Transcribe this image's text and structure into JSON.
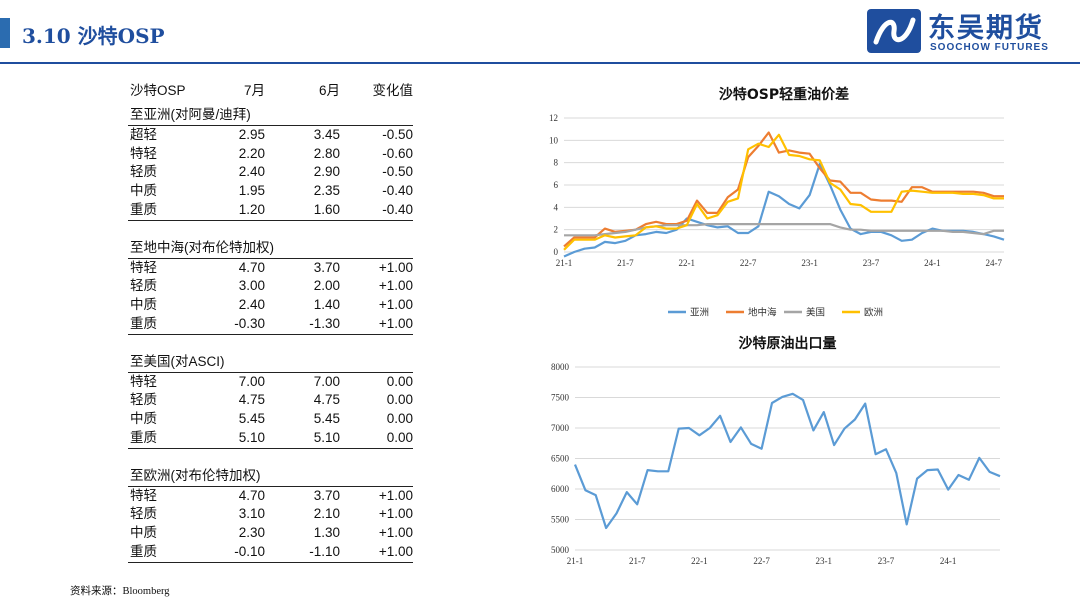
{
  "header": {
    "title": "3.10 沙特OSP"
  },
  "logo": {
    "cn": "东吴期货",
    "en": "SOOCHOW FUTURES"
  },
  "table": {
    "columns": [
      "沙特OSP",
      "7月",
      "6月",
      "变化值"
    ],
    "sections": [
      {
        "title": "至亚洲(对阿曼/迪拜)",
        "rows": [
          [
            "超轻",
            "2.95",
            "3.45",
            "-0.50"
          ],
          [
            "特轻",
            "2.20",
            "2.80",
            "-0.60"
          ],
          [
            "轻质",
            "2.40",
            "2.90",
            "-0.50"
          ],
          [
            "中质",
            "1.95",
            "2.35",
            "-0.40"
          ],
          [
            "重质",
            "1.20",
            "1.60",
            "-0.40"
          ]
        ]
      },
      {
        "title": "至地中海(对布伦特加权)",
        "rows": [
          [
            "特轻",
            "4.70",
            "3.70",
            "+1.00"
          ],
          [
            "轻质",
            "3.00",
            "2.00",
            "+1.00"
          ],
          [
            "中质",
            "2.40",
            "1.40",
            "+1.00"
          ],
          [
            "重质",
            "-0.30",
            "-1.30",
            "+1.00"
          ]
        ]
      },
      {
        "title": "至美国(对ASCI)",
        "rows": [
          [
            "特轻",
            "7.00",
            "7.00",
            "0.00"
          ],
          [
            "轻质",
            "4.75",
            "4.75",
            "0.00"
          ],
          [
            "中质",
            "5.45",
            "5.45",
            "0.00"
          ],
          [
            "重质",
            "5.10",
            "5.10",
            "0.00"
          ]
        ]
      },
      {
        "title": "至欧洲(对布伦特加权)",
        "rows": [
          [
            "特轻",
            "4.70",
            "3.70",
            "+1.00"
          ],
          [
            "轻质",
            "3.10",
            "2.10",
            "+1.00"
          ],
          [
            "中质",
            "2.30",
            "1.30",
            "+1.00"
          ],
          [
            "重质",
            "-0.10",
            "-1.10",
            "+1.00"
          ]
        ]
      }
    ]
  },
  "source": "资料来源：Bloomberg",
  "chart_data": [
    {
      "type": "line",
      "title": "沙特OSP轻重油价差",
      "xlabel": "",
      "ylabel": "",
      "ylim": [
        0,
        12
      ],
      "yticks": [
        0,
        2,
        4,
        6,
        8,
        10,
        12
      ],
      "xticks": [
        "21-1",
        "21-7",
        "22-1",
        "22-7",
        "23-1",
        "23-7",
        "24-1",
        "24-7"
      ],
      "x_start": "21-1",
      "grid": true,
      "legend": "bottom",
      "series": [
        {
          "name": "亚洲",
          "color": "#5B9BD5",
          "values": [
            -0.4,
            0.0,
            0.3,
            0.4,
            0.9,
            0.8,
            1.0,
            1.5,
            1.6,
            1.8,
            1.7,
            2.0,
            3.0,
            2.7,
            2.4,
            2.2,
            2.3,
            1.7,
            1.7,
            2.3,
            5.4,
            5.0,
            4.3,
            3.9,
            5.1,
            7.9,
            6.0,
            3.8,
            2.1,
            1.6,
            1.8,
            1.8,
            1.5,
            1.0,
            1.1,
            1.7,
            2.1,
            1.9,
            1.9,
            1.9,
            1.8,
            1.6,
            1.4,
            1.1
          ]
        },
        {
          "name": "地中海",
          "color": "#ED7D31",
          "values": [
            0.5,
            1.3,
            1.3,
            1.3,
            2.1,
            1.8,
            1.9,
            2.0,
            2.5,
            2.7,
            2.5,
            2.5,
            2.8,
            4.6,
            3.5,
            3.5,
            4.9,
            5.6,
            8.5,
            9.5,
            10.7,
            8.9,
            9.1,
            8.9,
            8.8,
            7.5,
            6.4,
            6.3,
            5.3,
            5.3,
            4.7,
            4.6,
            4.6,
            4.5,
            5.8,
            5.8,
            5.4,
            5.4,
            5.4,
            5.4,
            5.4,
            5.3,
            5.0,
            5.0
          ]
        },
        {
          "name": "美国",
          "color": "#A5A5A5",
          "values": [
            1.5,
            1.5,
            1.5,
            1.5,
            1.6,
            1.7,
            1.8,
            2.0,
            2.2,
            2.3,
            2.4,
            2.4,
            2.4,
            2.4,
            2.5,
            2.5,
            2.5,
            2.5,
            2.5,
            2.5,
            2.5,
            2.5,
            2.5,
            2.5,
            2.5,
            2.5,
            2.5,
            2.2,
            2.0,
            2.0,
            1.9,
            1.9,
            1.9,
            1.9,
            1.9,
            1.9,
            1.9,
            1.9,
            1.8,
            1.8,
            1.7,
            1.6,
            1.9,
            1.9
          ]
        },
        {
          "name": "欧洲",
          "color": "#FFC000",
          "values": [
            0.2,
            1.1,
            1.1,
            1.1,
            1.5,
            1.3,
            1.4,
            1.5,
            2.2,
            2.3,
            2.1,
            2.1,
            2.4,
            4.3,
            3.0,
            3.3,
            4.5,
            4.8,
            9.2,
            9.7,
            9.4,
            10.5,
            8.7,
            8.6,
            8.3,
            8.2,
            6.2,
            5.6,
            4.3,
            4.2,
            3.6,
            3.6,
            3.6,
            5.4,
            5.5,
            5.4,
            5.3,
            5.3,
            5.3,
            5.2,
            5.2,
            5.1,
            4.8,
            4.8
          ]
        }
      ]
    },
    {
      "type": "line",
      "title": "沙特原油出口量",
      "xlabel": "",
      "ylabel": "",
      "ylim": [
        5000,
        8000
      ],
      "yticks": [
        5000,
        5500,
        6000,
        6500,
        7000,
        7500,
        8000
      ],
      "xticks": [
        "21-1",
        "21-7",
        "22-1",
        "22-7",
        "23-1",
        "23-7",
        "24-1"
      ],
      "x_start": "21-1",
      "grid": true,
      "series": [
        {
          "name": "",
          "color": "#5B9BD5",
          "values": [
            6400,
            5980,
            5900,
            5360,
            5600,
            5950,
            5750,
            6310,
            6290,
            6290,
            6990,
            7000,
            6880,
            7000,
            7200,
            6770,
            7010,
            6740,
            6660,
            7410,
            7510,
            7560,
            7460,
            6960,
            7260,
            6720,
            6990,
            7140,
            7400,
            6570,
            6650,
            6260,
            5420,
            6170,
            6310,
            6320,
            5990,
            6230,
            6150,
            6510,
            6280,
            6210
          ]
        }
      ]
    }
  ]
}
